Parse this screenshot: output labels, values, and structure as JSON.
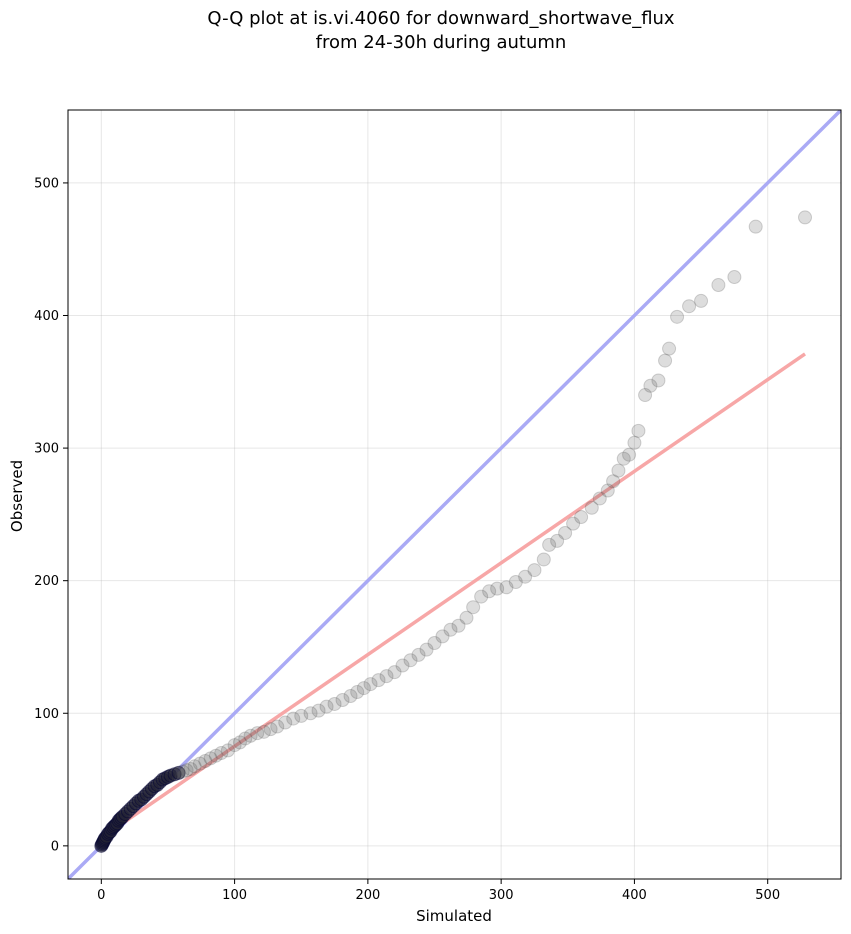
{
  "chart_data": {
    "type": "scatter",
    "title_lines": [
      "Q-Q plot at is.vi.4060 for downward_shortwave_flux",
      "from 24-30h during autumn"
    ],
    "xlabel": "Simulated",
    "ylabel": "Observed",
    "xlim": [
      -25,
      555
    ],
    "ylim": [
      -25,
      555
    ],
    "xticks": [
      0,
      100,
      200,
      300,
      400,
      500
    ],
    "yticks": [
      0,
      100,
      200,
      300,
      400,
      500
    ],
    "xtick_labels": [
      "0",
      "100",
      "200",
      "300",
      "400",
      "500"
    ],
    "ytick_labels": [
      "0",
      "100",
      "200",
      "300",
      "400",
      "500"
    ],
    "grid": true,
    "colors": {
      "points": "#555555",
      "dense_points_edge": "#000033",
      "identity_line": "#aaaaf5",
      "fit_line": "#f7a7a7"
    },
    "identity_line": {
      "x": [
        -25,
        555
      ],
      "y": [
        -25,
        555
      ]
    },
    "fit_line": {
      "x": [
        0,
        528
      ],
      "y": [
        6,
        371
      ]
    },
    "points": [
      [
        0,
        0
      ],
      [
        0.5,
        1
      ],
      [
        1,
        2
      ],
      [
        1.5,
        3
      ],
      [
        2,
        4
      ],
      [
        2.5,
        5
      ],
      [
        3,
        6
      ],
      [
        4,
        7
      ],
      [
        5,
        9
      ],
      [
        6,
        10
      ],
      [
        7,
        11
      ],
      [
        8,
        13
      ],
      [
        9,
        14
      ],
      [
        10,
        15
      ],
      [
        11,
        16
      ],
      [
        12,
        17
      ],
      [
        13,
        19
      ],
      [
        14,
        20
      ],
      [
        15,
        21
      ],
      [
        16,
        22
      ],
      [
        18,
        24
      ],
      [
        20,
        26
      ],
      [
        22,
        28
      ],
      [
        24,
        30
      ],
      [
        26,
        32
      ],
      [
        28,
        34
      ],
      [
        30,
        35
      ],
      [
        32,
        37
      ],
      [
        34,
        39
      ],
      [
        36,
        41
      ],
      [
        38,
        43
      ],
      [
        40,
        45
      ],
      [
        42,
        46
      ],
      [
        44,
        48
      ],
      [
        46,
        50
      ],
      [
        48,
        51
      ],
      [
        50,
        52
      ],
      [
        52,
        53
      ],
      [
        55,
        54
      ],
      [
        58,
        55
      ],
      [
        61,
        56
      ],
      [
        64,
        57
      ],
      [
        67,
        58
      ],
      [
        70,
        60
      ],
      [
        74,
        62
      ],
      [
        78,
        64
      ],
      [
        82,
        66
      ],
      [
        86,
        68
      ],
      [
        90,
        70
      ],
      [
        95,
        72
      ],
      [
        100,
        76
      ],
      [
        104,
        78
      ],
      [
        108,
        81
      ],
      [
        112,
        83
      ],
      [
        117,
        85
      ],
      [
        122,
        86
      ],
      [
        127,
        88
      ],
      [
        132,
        90
      ],
      [
        138,
        93
      ],
      [
        144,
        96
      ],
      [
        150,
        98
      ],
      [
        157,
        100
      ],
      [
        163,
        102
      ],
      [
        169,
        105
      ],
      [
        175,
        107
      ],
      [
        181,
        110
      ],
      [
        187,
        113
      ],
      [
        192,
        116
      ],
      [
        197,
        119
      ],
      [
        202,
        122
      ],
      [
        208,
        125
      ],
      [
        214,
        128
      ],
      [
        220,
        131
      ],
      [
        226,
        136
      ],
      [
        232,
        140
      ],
      [
        238,
        144
      ],
      [
        244,
        148
      ],
      [
        250,
        153
      ],
      [
        256,
        158
      ],
      [
        262,
        163
      ],
      [
        268,
        166
      ],
      [
        274,
        172
      ],
      [
        279,
        180
      ],
      [
        285,
        188
      ],
      [
        291,
        192
      ],
      [
        297,
        194
      ],
      [
        304,
        195
      ],
      [
        311,
        199
      ],
      [
        318,
        203
      ],
      [
        325,
        208
      ],
      [
        332,
        216
      ],
      [
        336,
        227
      ],
      [
        342,
        230
      ],
      [
        348,
        236
      ],
      [
        354,
        243
      ],
      [
        360,
        248
      ],
      [
        368,
        255
      ],
      [
        374,
        262
      ],
      [
        380,
        268
      ],
      [
        384,
        275
      ],
      [
        388,
        283
      ],
      [
        392,
        292
      ],
      [
        396,
        295
      ],
      [
        400,
        304
      ],
      [
        403,
        313
      ],
      [
        408,
        340
      ],
      [
        412,
        347
      ],
      [
        418,
        351
      ],
      [
        423,
        366
      ],
      [
        426,
        375
      ],
      [
        432,
        399
      ],
      [
        441,
        407
      ],
      [
        450,
        411
      ],
      [
        463,
        423
      ],
      [
        475,
        429
      ],
      [
        491,
        467
      ],
      [
        528,
        474
      ]
    ]
  }
}
